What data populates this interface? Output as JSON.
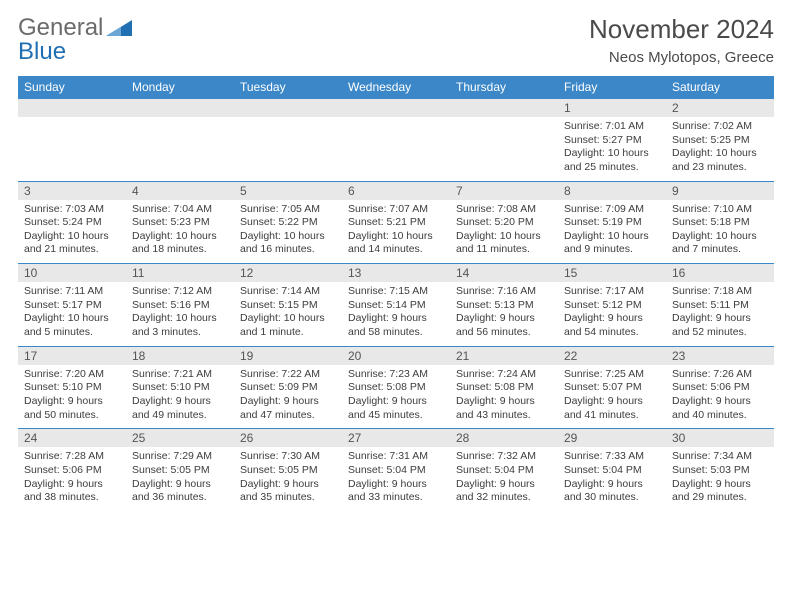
{
  "logo": {
    "word1": "General",
    "word2": "Blue"
  },
  "title": "November 2024",
  "location": "Neos Mylotopos, Greece",
  "colors": {
    "headerBar": "#3b87c8",
    "numRow": "#e8e8e8",
    "text": "#3d3d3d",
    "ruleLine": "#3b87c8",
    "logoBlue": "#1f6fb2",
    "logoGray": "#6b6b6b",
    "pageBg": "#ffffff"
  },
  "typography": {
    "title_fontsize": 26,
    "location_fontsize": 15,
    "dayhead_fontsize": 12,
    "daynum_fontsize": 12,
    "cell_fontsize": 10.5
  },
  "dayNames": [
    "Sunday",
    "Monday",
    "Tuesday",
    "Wednesday",
    "Thursday",
    "Friday",
    "Saturday"
  ],
  "weeks": [
    [
      {
        "n": "",
        "l1": "",
        "l2": "",
        "l3": "",
        "l4": ""
      },
      {
        "n": "",
        "l1": "",
        "l2": "",
        "l3": "",
        "l4": ""
      },
      {
        "n": "",
        "l1": "",
        "l2": "",
        "l3": "",
        "l4": ""
      },
      {
        "n": "",
        "l1": "",
        "l2": "",
        "l3": "",
        "l4": ""
      },
      {
        "n": "",
        "l1": "",
        "l2": "",
        "l3": "",
        "l4": ""
      },
      {
        "n": "1",
        "l1": "Sunrise: 7:01 AM",
        "l2": "Sunset: 5:27 PM",
        "l3": "Daylight: 10 hours",
        "l4": "and 25 minutes."
      },
      {
        "n": "2",
        "l1": "Sunrise: 7:02 AM",
        "l2": "Sunset: 5:25 PM",
        "l3": "Daylight: 10 hours",
        "l4": "and 23 minutes."
      }
    ],
    [
      {
        "n": "3",
        "l1": "Sunrise: 7:03 AM",
        "l2": "Sunset: 5:24 PM",
        "l3": "Daylight: 10 hours",
        "l4": "and 21 minutes."
      },
      {
        "n": "4",
        "l1": "Sunrise: 7:04 AM",
        "l2": "Sunset: 5:23 PM",
        "l3": "Daylight: 10 hours",
        "l4": "and 18 minutes."
      },
      {
        "n": "5",
        "l1": "Sunrise: 7:05 AM",
        "l2": "Sunset: 5:22 PM",
        "l3": "Daylight: 10 hours",
        "l4": "and 16 minutes."
      },
      {
        "n": "6",
        "l1": "Sunrise: 7:07 AM",
        "l2": "Sunset: 5:21 PM",
        "l3": "Daylight: 10 hours",
        "l4": "and 14 minutes."
      },
      {
        "n": "7",
        "l1": "Sunrise: 7:08 AM",
        "l2": "Sunset: 5:20 PM",
        "l3": "Daylight: 10 hours",
        "l4": "and 11 minutes."
      },
      {
        "n": "8",
        "l1": "Sunrise: 7:09 AM",
        "l2": "Sunset: 5:19 PM",
        "l3": "Daylight: 10 hours",
        "l4": "and 9 minutes."
      },
      {
        "n": "9",
        "l1": "Sunrise: 7:10 AM",
        "l2": "Sunset: 5:18 PM",
        "l3": "Daylight: 10 hours",
        "l4": "and 7 minutes."
      }
    ],
    [
      {
        "n": "10",
        "l1": "Sunrise: 7:11 AM",
        "l2": "Sunset: 5:17 PM",
        "l3": "Daylight: 10 hours",
        "l4": "and 5 minutes."
      },
      {
        "n": "11",
        "l1": "Sunrise: 7:12 AM",
        "l2": "Sunset: 5:16 PM",
        "l3": "Daylight: 10 hours",
        "l4": "and 3 minutes."
      },
      {
        "n": "12",
        "l1": "Sunrise: 7:14 AM",
        "l2": "Sunset: 5:15 PM",
        "l3": "Daylight: 10 hours",
        "l4": "and 1 minute."
      },
      {
        "n": "13",
        "l1": "Sunrise: 7:15 AM",
        "l2": "Sunset: 5:14 PM",
        "l3": "Daylight: 9 hours",
        "l4": "and 58 minutes."
      },
      {
        "n": "14",
        "l1": "Sunrise: 7:16 AM",
        "l2": "Sunset: 5:13 PM",
        "l3": "Daylight: 9 hours",
        "l4": "and 56 minutes."
      },
      {
        "n": "15",
        "l1": "Sunrise: 7:17 AM",
        "l2": "Sunset: 5:12 PM",
        "l3": "Daylight: 9 hours",
        "l4": "and 54 minutes."
      },
      {
        "n": "16",
        "l1": "Sunrise: 7:18 AM",
        "l2": "Sunset: 5:11 PM",
        "l3": "Daylight: 9 hours",
        "l4": "and 52 minutes."
      }
    ],
    [
      {
        "n": "17",
        "l1": "Sunrise: 7:20 AM",
        "l2": "Sunset: 5:10 PM",
        "l3": "Daylight: 9 hours",
        "l4": "and 50 minutes."
      },
      {
        "n": "18",
        "l1": "Sunrise: 7:21 AM",
        "l2": "Sunset: 5:10 PM",
        "l3": "Daylight: 9 hours",
        "l4": "and 49 minutes."
      },
      {
        "n": "19",
        "l1": "Sunrise: 7:22 AM",
        "l2": "Sunset: 5:09 PM",
        "l3": "Daylight: 9 hours",
        "l4": "and 47 minutes."
      },
      {
        "n": "20",
        "l1": "Sunrise: 7:23 AM",
        "l2": "Sunset: 5:08 PM",
        "l3": "Daylight: 9 hours",
        "l4": "and 45 minutes."
      },
      {
        "n": "21",
        "l1": "Sunrise: 7:24 AM",
        "l2": "Sunset: 5:08 PM",
        "l3": "Daylight: 9 hours",
        "l4": "and 43 minutes."
      },
      {
        "n": "22",
        "l1": "Sunrise: 7:25 AM",
        "l2": "Sunset: 5:07 PM",
        "l3": "Daylight: 9 hours",
        "l4": "and 41 minutes."
      },
      {
        "n": "23",
        "l1": "Sunrise: 7:26 AM",
        "l2": "Sunset: 5:06 PM",
        "l3": "Daylight: 9 hours",
        "l4": "and 40 minutes."
      }
    ],
    [
      {
        "n": "24",
        "l1": "Sunrise: 7:28 AM",
        "l2": "Sunset: 5:06 PM",
        "l3": "Daylight: 9 hours",
        "l4": "and 38 minutes."
      },
      {
        "n": "25",
        "l1": "Sunrise: 7:29 AM",
        "l2": "Sunset: 5:05 PM",
        "l3": "Daylight: 9 hours",
        "l4": "and 36 minutes."
      },
      {
        "n": "26",
        "l1": "Sunrise: 7:30 AM",
        "l2": "Sunset: 5:05 PM",
        "l3": "Daylight: 9 hours",
        "l4": "and 35 minutes."
      },
      {
        "n": "27",
        "l1": "Sunrise: 7:31 AM",
        "l2": "Sunset: 5:04 PM",
        "l3": "Daylight: 9 hours",
        "l4": "and 33 minutes."
      },
      {
        "n": "28",
        "l1": "Sunrise: 7:32 AM",
        "l2": "Sunset: 5:04 PM",
        "l3": "Daylight: 9 hours",
        "l4": "and 32 minutes."
      },
      {
        "n": "29",
        "l1": "Sunrise: 7:33 AM",
        "l2": "Sunset: 5:04 PM",
        "l3": "Daylight: 9 hours",
        "l4": "and 30 minutes."
      },
      {
        "n": "30",
        "l1": "Sunrise: 7:34 AM",
        "l2": "Sunset: 5:03 PM",
        "l3": "Daylight: 9 hours",
        "l4": "and 29 minutes."
      }
    ]
  ]
}
